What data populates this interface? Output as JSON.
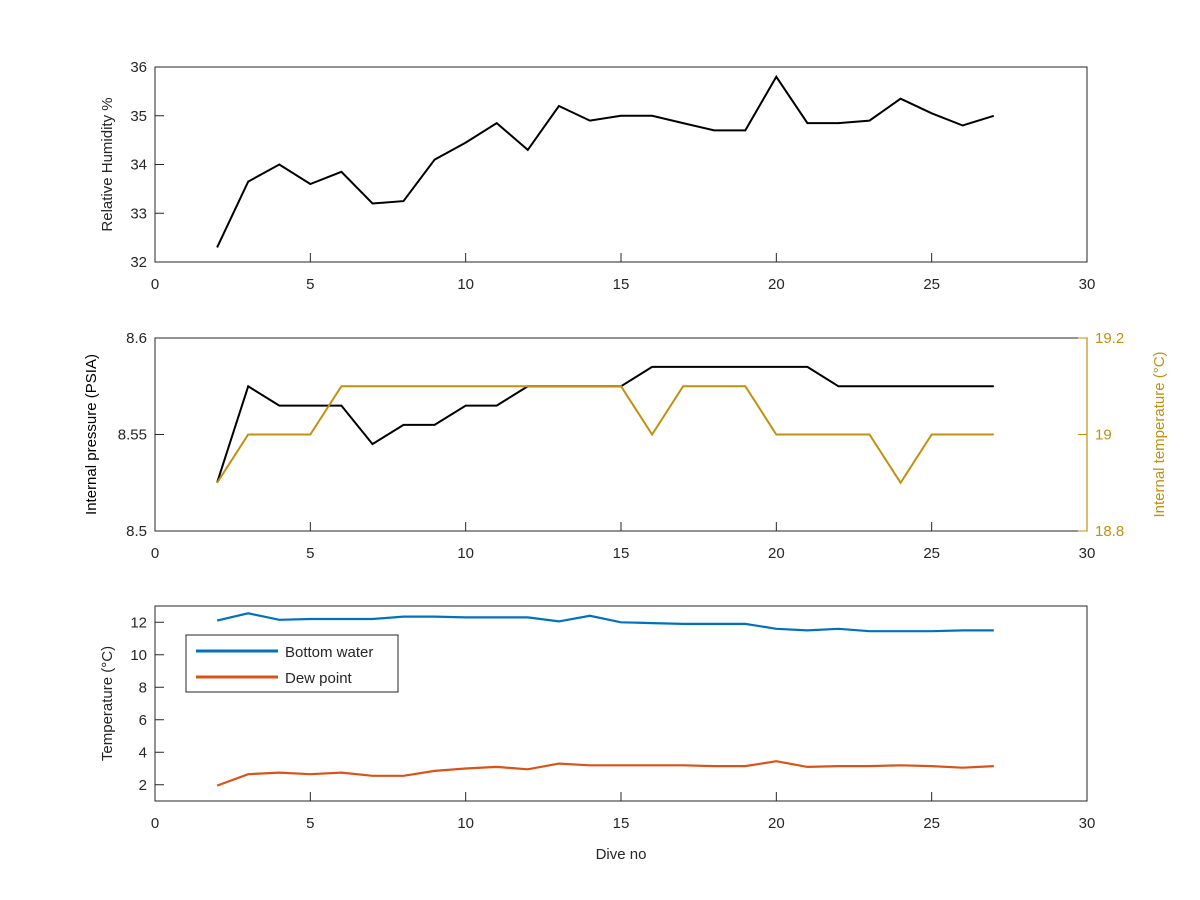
{
  "chart_data": [
    {
      "type": "line",
      "xlabel": "",
      "ylabel": "Relative Humidity %",
      "xlim": [
        0,
        30
      ],
      "ylim": [
        32,
        36
      ],
      "xticks": [
        "0",
        "5",
        "10",
        "15",
        "20",
        "25",
        "30"
      ],
      "yticks": [
        "32",
        "33",
        "34",
        "35",
        "36"
      ],
      "x": [
        2,
        3,
        4,
        5,
        6,
        7,
        8,
        9,
        10,
        11,
        12,
        13,
        14,
        15,
        16,
        17,
        18,
        19,
        20,
        21,
        22,
        23,
        24,
        25,
        26,
        27
      ],
      "series": [
        {
          "values": [
            32.3,
            33.65,
            34.0,
            33.6,
            33.85,
            33.2,
            33.25,
            34.1,
            34.45,
            34.85,
            34.3,
            35.2,
            34.9,
            35.0,
            35.0,
            34.85,
            34.7,
            34.7,
            35.8,
            34.85,
            34.85,
            34.9,
            35.35,
            35.05,
            34.8,
            35.0
          ],
          "color": "#000000"
        }
      ],
      "grid": false
    },
    {
      "type": "line",
      "xlabel": "",
      "ylabel": "Internal pressure (PSIA)",
      "ylabel_right": "Internal temperature (°C)",
      "xlim": [
        0,
        30
      ],
      "ylim": [
        8.5,
        8.6
      ],
      "ylim_right": [
        18.8,
        19.2
      ],
      "xticks": [
        "0",
        "5",
        "10",
        "15",
        "20",
        "25",
        "30"
      ],
      "yticks": [
        "8.5",
        "8.55",
        "8.6"
      ],
      "yticks_right": [
        "18.8",
        "19",
        "19.2"
      ],
      "x": [
        2,
        3,
        4,
        5,
        6,
        7,
        8,
        9,
        10,
        11,
        12,
        13,
        14,
        15,
        16,
        17,
        18,
        19,
        20,
        21,
        22,
        23,
        24,
        25,
        26,
        27
      ],
      "series": [
        {
          "axis": "left",
          "values": [
            8.525,
            8.575,
            8.565,
            8.565,
            8.565,
            8.545,
            8.555,
            8.555,
            8.565,
            8.565,
            8.575,
            8.575,
            8.575,
            8.575,
            8.585,
            8.585,
            8.585,
            8.585,
            8.585,
            8.585,
            8.575,
            8.575,
            8.575,
            8.575,
            8.575,
            8.575
          ],
          "color": "#000000"
        },
        {
          "axis": "right",
          "values": [
            18.9,
            19.0,
            19.0,
            19.0,
            19.1,
            19.1,
            19.1,
            19.1,
            19.1,
            19.1,
            19.1,
            19.1,
            19.1,
            19.1,
            19.0,
            19.1,
            19.1,
            19.1,
            19.0,
            19.0,
            19.0,
            19.0,
            18.9,
            19.0,
            19.0,
            19.0
          ],
          "color": "#C09010"
        }
      ],
      "right_axis_color": "#C09010",
      "grid": false
    },
    {
      "type": "line",
      "xlabel": "Dive no",
      "ylabel": "Temperature (°C)",
      "xlim": [
        0,
        30
      ],
      "ylim": [
        1,
        13
      ],
      "xticks": [
        "0",
        "5",
        "10",
        "15",
        "20",
        "25",
        "30"
      ],
      "yticks": [
        "2",
        "4",
        "6",
        "8",
        "10",
        "12"
      ],
      "x": [
        2,
        3,
        4,
        5,
        6,
        7,
        8,
        9,
        10,
        11,
        12,
        13,
        14,
        15,
        16,
        17,
        18,
        19,
        20,
        21,
        22,
        23,
        24,
        25,
        26,
        27
      ],
      "series": [
        {
          "name": "Bottom water",
          "values": [
            12.1,
            12.55,
            12.15,
            12.2,
            12.2,
            12.2,
            12.35,
            12.35,
            12.3,
            12.3,
            12.3,
            12.05,
            12.4,
            12.0,
            11.95,
            11.9,
            11.9,
            11.9,
            11.6,
            11.5,
            11.6,
            11.45,
            11.45,
            11.45,
            11.5,
            11.5
          ],
          "color": "#0072BD"
        },
        {
          "name": "Dew point",
          "values": [
            1.95,
            2.65,
            2.75,
            2.65,
            2.75,
            2.55,
            2.55,
            2.85,
            3.0,
            3.1,
            2.95,
            3.3,
            3.2,
            3.2,
            3.2,
            3.2,
            3.15,
            3.15,
            3.45,
            3.1,
            3.15,
            3.15,
            3.2,
            3.15,
            3.05,
            3.15
          ],
          "color": "#D95319"
        }
      ],
      "legend": "top-left",
      "grid": false
    }
  ]
}
